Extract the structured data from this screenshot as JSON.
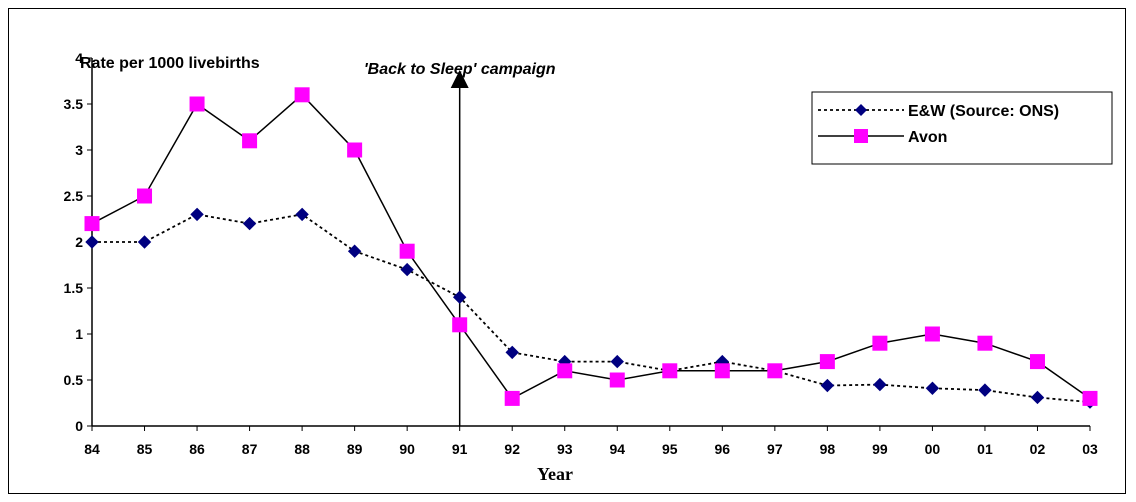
{
  "chart_data": {
    "type": "line",
    "title": "",
    "ylabel": "Rate per 1000 livebirths",
    "xlabel": "Year",
    "ylim": [
      0,
      4
    ],
    "yticks": [
      "0",
      "0.5",
      "1",
      "1.5",
      "2",
      "2.5",
      "3",
      "3.5",
      "4"
    ],
    "categories": [
      "84",
      "85",
      "86",
      "87",
      "88",
      "89",
      "90",
      "91",
      "92",
      "93",
      "94",
      "95",
      "96",
      "97",
      "98",
      "99",
      "00",
      "01",
      "02",
      "03"
    ],
    "series": [
      {
        "name": "E&W (Source: ONS)",
        "color": "#000080",
        "marker": "diamond",
        "line": "dotted",
        "values": [
          2.0,
          2.0,
          2.3,
          2.2,
          2.3,
          1.9,
          1.7,
          1.4,
          0.8,
          0.7,
          0.7,
          0.6,
          0.7,
          0.6,
          0.44,
          0.45,
          0.41,
          0.39,
          0.31,
          0.26
        ]
      },
      {
        "name": "Avon",
        "color": "#ff00ff",
        "marker": "square",
        "line": "solid",
        "values": [
          2.2,
          2.5,
          3.5,
          3.1,
          3.6,
          3.0,
          1.9,
          1.1,
          0.3,
          0.6,
          0.5,
          0.6,
          0.6,
          0.6,
          0.7,
          0.9,
          1.0,
          0.9,
          0.7,
          0.3
        ]
      }
    ],
    "annotation": {
      "text": "'Back to Sleep' campaign",
      "at_category": "91"
    },
    "legend": "top-right",
    "grid": false
  }
}
